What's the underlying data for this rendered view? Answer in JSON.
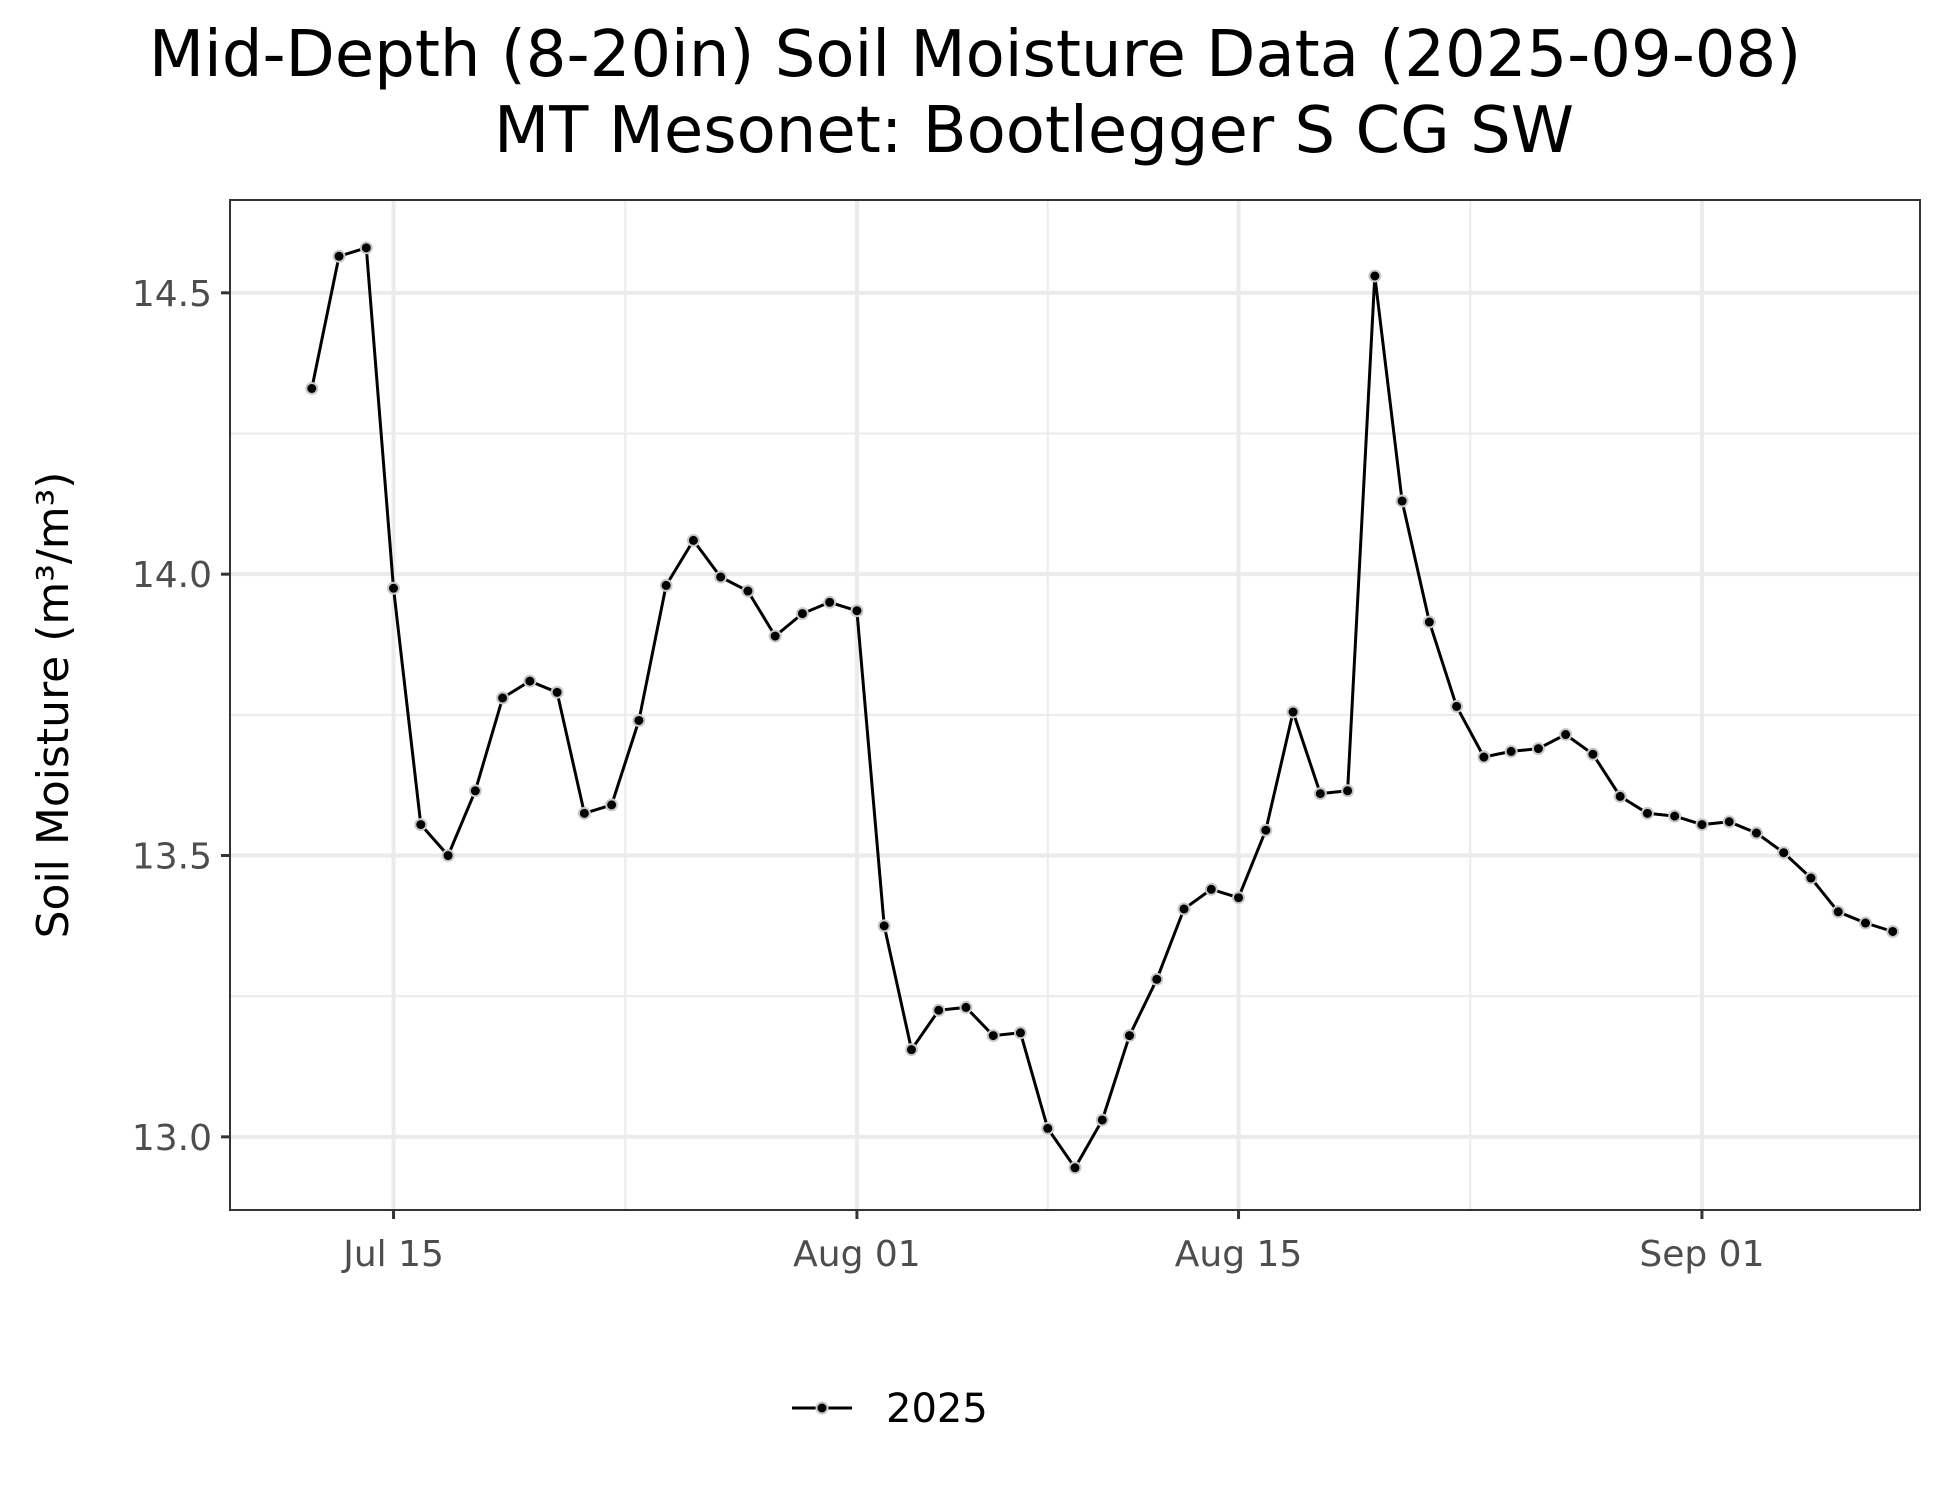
{
  "chart_data": {
    "type": "line",
    "title_line1": "Mid-Depth (8-20in) Soil Moisture Data (2025-09-08)",
    "title_line2": "MT Mesonet: Bootlegger S CG SW",
    "xlabel": "",
    "ylabel": "Soil Moisture (m³/m³)",
    "x_ticks": [
      {
        "date": "2025-07-15",
        "label": "Jul 15"
      },
      {
        "date": "2025-08-01",
        "label": "Aug 01"
      },
      {
        "date": "2025-08-15",
        "label": "Aug 15"
      },
      {
        "date": "2025-09-01",
        "label": "Sep 01"
      }
    ],
    "y_ticks": [
      {
        "value": 13.0,
        "label": "13.0"
      },
      {
        "value": 13.5,
        "label": "13.5"
      },
      {
        "value": 14.0,
        "label": "14.0"
      },
      {
        "value": 14.5,
        "label": "14.5"
      }
    ],
    "xlim": [
      "2025-07-09",
      "2025-09-09"
    ],
    "ylim": [
      12.87,
      14.665
    ],
    "grid": true,
    "legend": {
      "position": "bottom",
      "entries": [
        "2025"
      ]
    },
    "colors": {
      "line": "#000000",
      "marker_outline": "#c8c8c8",
      "grid": "#ebebeb",
      "panel_border": "#333333"
    },
    "series": [
      {
        "name": "2025",
        "x": [
          "2025-07-12",
          "2025-07-13",
          "2025-07-14",
          "2025-07-15",
          "2025-07-16",
          "2025-07-17",
          "2025-07-18",
          "2025-07-19",
          "2025-07-20",
          "2025-07-21",
          "2025-07-22",
          "2025-07-23",
          "2025-07-24",
          "2025-07-25",
          "2025-07-26",
          "2025-07-27",
          "2025-07-28",
          "2025-07-29",
          "2025-07-30",
          "2025-07-31",
          "2025-08-01",
          "2025-08-02",
          "2025-08-03",
          "2025-08-04",
          "2025-08-05",
          "2025-08-06",
          "2025-08-07",
          "2025-08-08",
          "2025-08-09",
          "2025-08-10",
          "2025-08-11",
          "2025-08-12",
          "2025-08-13",
          "2025-08-14",
          "2025-08-15",
          "2025-08-16",
          "2025-08-17",
          "2025-08-18",
          "2025-08-19",
          "2025-08-20",
          "2025-08-21",
          "2025-08-22",
          "2025-08-23",
          "2025-08-24",
          "2025-08-25",
          "2025-08-26",
          "2025-08-27",
          "2025-08-28",
          "2025-08-29",
          "2025-08-30",
          "2025-08-31",
          "2025-09-01",
          "2025-09-02",
          "2025-09-03",
          "2025-09-04",
          "2025-09-05",
          "2025-09-06",
          "2025-09-07",
          "2025-09-08"
        ],
        "values": [
          14.33,
          14.565,
          14.58,
          13.975,
          13.555,
          13.5,
          13.615,
          13.78,
          13.81,
          13.79,
          13.575,
          13.59,
          13.74,
          13.98,
          14.06,
          13.995,
          13.97,
          13.89,
          13.93,
          13.95,
          13.935,
          13.375,
          13.155,
          13.225,
          13.23,
          13.18,
          13.185,
          13.015,
          12.945,
          13.03,
          13.18,
          13.28,
          13.405,
          13.44,
          13.425,
          13.545,
          13.755,
          13.61,
          13.615,
          14.53,
          14.13,
          13.915,
          13.765,
          13.675,
          13.685,
          13.69,
          13.715,
          13.68,
          13.605,
          13.575,
          13.57,
          13.555,
          13.56,
          13.54,
          13.505,
          13.46,
          13.4,
          13.38,
          13.365
        ]
      }
    ]
  }
}
